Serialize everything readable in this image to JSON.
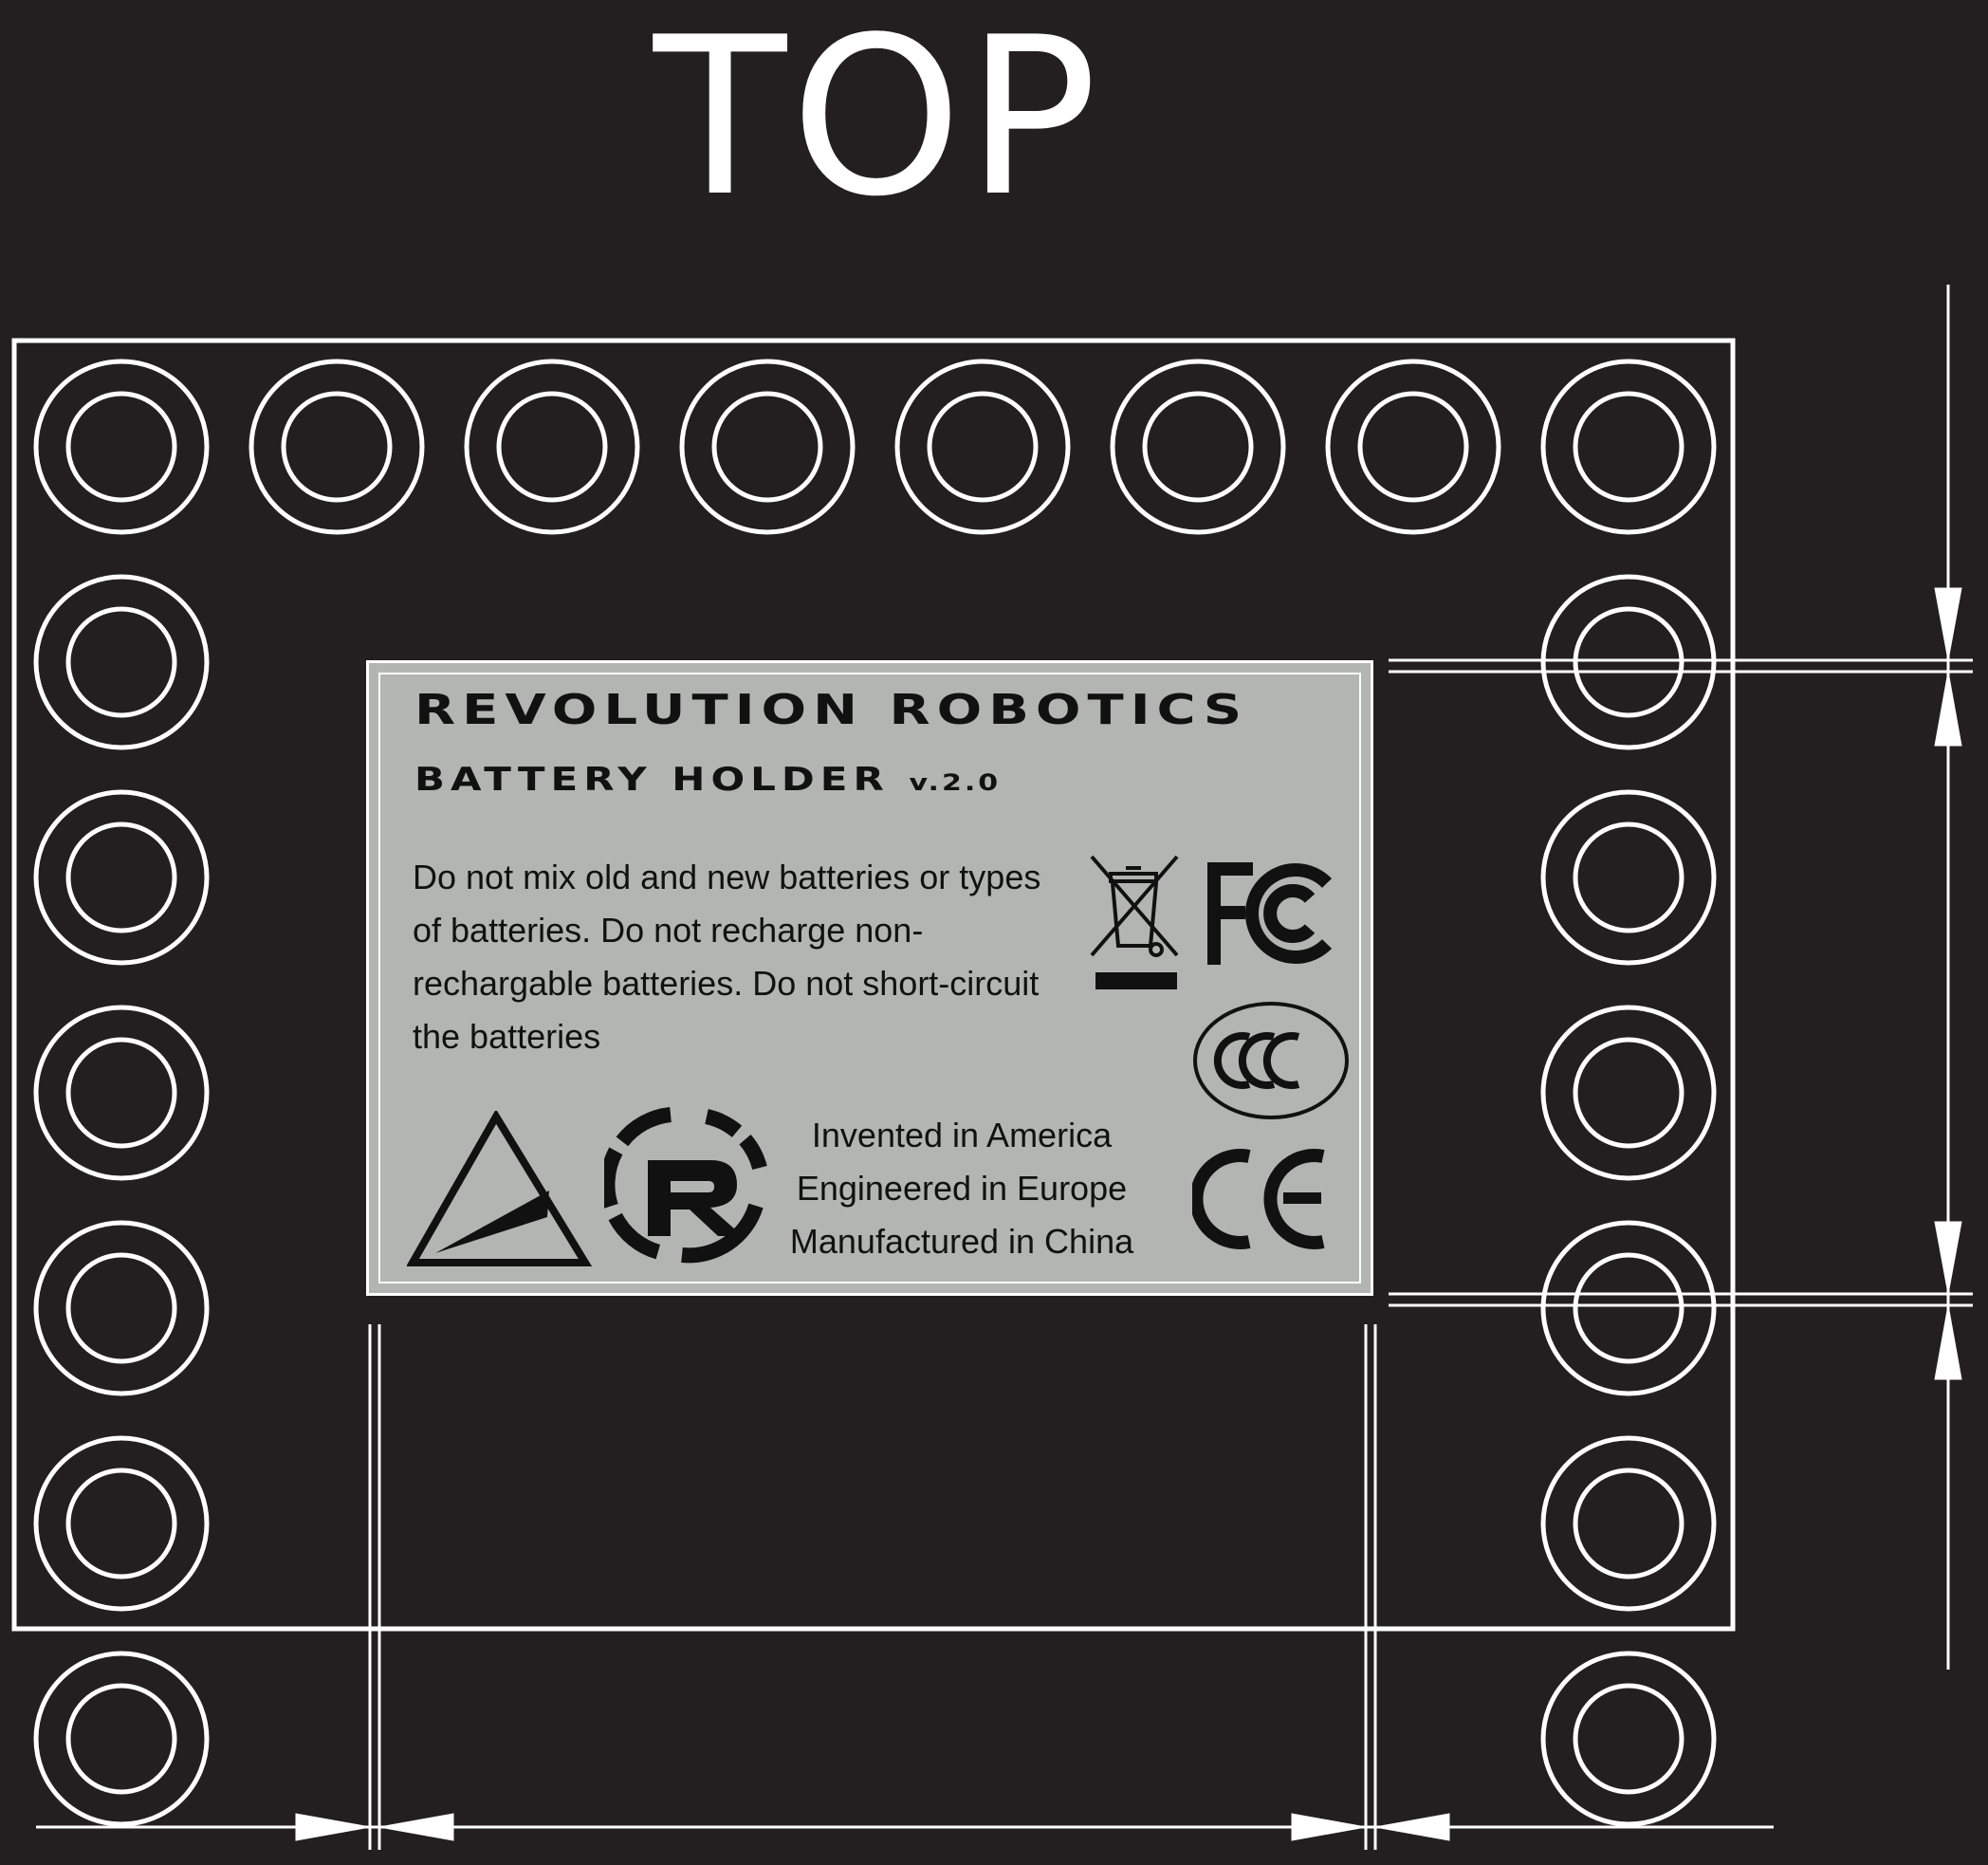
{
  "title": "TOP",
  "label": {
    "brand": "REVOLUTION ROBOTICS",
    "product": "BATTERY HOLDER",
    "version": "v.2.0",
    "warning": "Do not mix old and new batteries or types of batteries. Do not recharge non-rechargable batteries. Do not short-circuit the batteries",
    "origin": [
      "Invented in America",
      "Engineered in Europe",
      "Manufactured in China"
    ],
    "marks": {
      "weee": "crossed-bin-icon",
      "fcc": "FC",
      "ccc": "CCC",
      "ce": "CE",
      "triangle_logo": "triangle-logo",
      "revolution_logo": "revolution-r-logo"
    }
  },
  "board": {
    "top_row_count": 8,
    "side_column_count": 6
  },
  "colors": {
    "background": "#231f20",
    "line": "#ffffff",
    "label": "#b3b5b2",
    "ink": "#111111"
  }
}
